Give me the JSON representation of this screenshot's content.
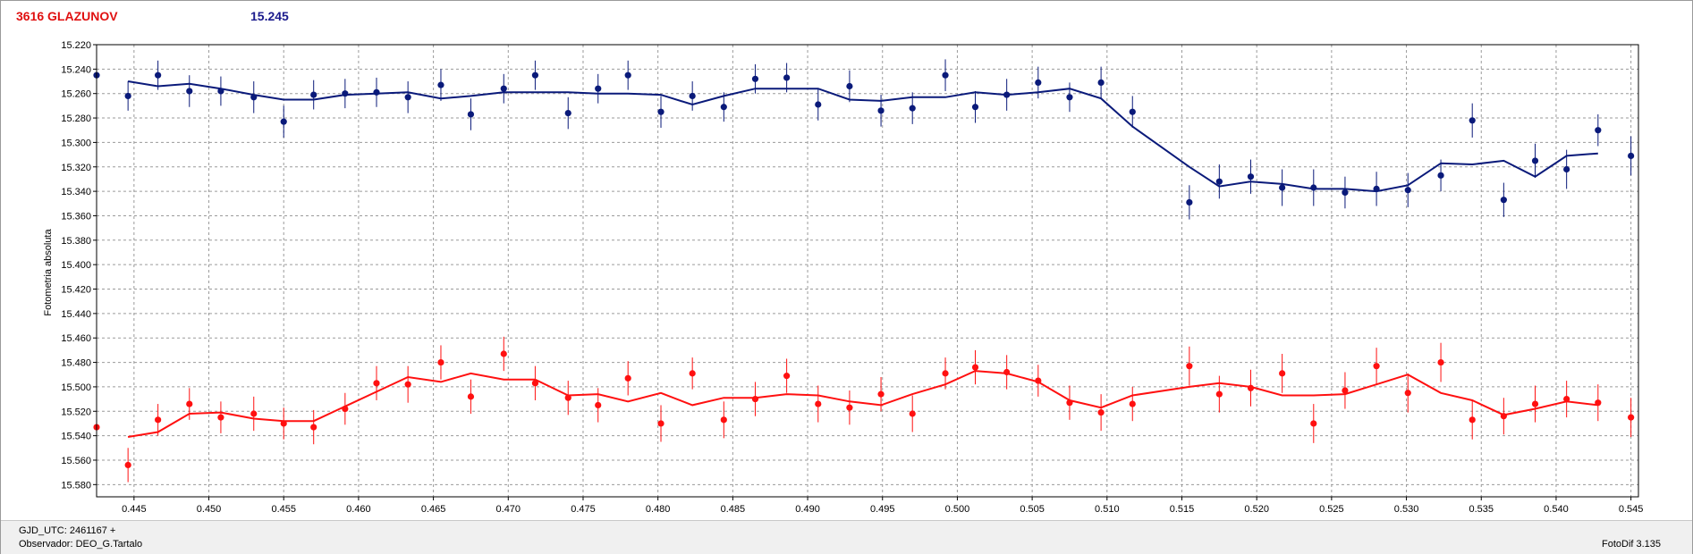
{
  "header": {
    "object": "3616 GLAZUNOV",
    "magnitude": "15.245"
  },
  "footer": {
    "gjd": "GJD_UTC: 2461167 +",
    "observer": "Observador: DEO_G.Tartalo",
    "software": "FotoDif 3.135"
  },
  "colors": {
    "series1": "#0a1a7a",
    "series2": "#ff1010"
  },
  "chart_data": {
    "type": "scatter",
    "title": "",
    "xlabel": "",
    "ylabel": "Fotometria absoluta",
    "xlim": [
      0.4425,
      0.5455
    ],
    "ylim": [
      15.22,
      15.59
    ],
    "y_inverted": true,
    "grid": true,
    "x_ticks": [
      "0.445",
      "0.450",
      "0.455",
      "0.460",
      "0.465",
      "0.470",
      "0.475",
      "0.480",
      "0.485",
      "0.490",
      "0.495",
      "0.500",
      "0.505",
      "0.510",
      "0.515",
      "0.520",
      "0.525",
      "0.530",
      "0.535",
      "0.540",
      "0.545"
    ],
    "y_ticks": [
      "15.220",
      "15.240",
      "15.260",
      "15.280",
      "15.300",
      "15.320",
      "15.340",
      "15.360",
      "15.380",
      "15.400",
      "15.420",
      "15.440",
      "15.460",
      "15.480",
      "15.500",
      "15.520",
      "15.540",
      "15.560",
      "15.580"
    ],
    "series": [
      {
        "color": "#0a1a7a",
        "points": [
          [
            0.4425,
            15.245
          ],
          [
            0.4446,
            15.262
          ],
          [
            0.4466,
            15.245
          ],
          [
            0.4487,
            15.258
          ],
          [
            0.4508,
            15.258
          ],
          [
            0.453,
            15.263
          ],
          [
            0.455,
            15.283
          ],
          [
            0.457,
            15.261
          ],
          [
            0.4591,
            15.26
          ],
          [
            0.4612,
            15.259
          ],
          [
            0.4633,
            15.263
          ],
          [
            0.4655,
            15.253
          ],
          [
            0.4675,
            15.277
          ],
          [
            0.4697,
            15.256
          ],
          [
            0.4718,
            15.245
          ],
          [
            0.474,
            15.276
          ],
          [
            0.476,
            15.256
          ],
          [
            0.478,
            15.245
          ],
          [
            0.4802,
            15.275
          ],
          [
            0.4823,
            15.262
          ],
          [
            0.4844,
            15.271
          ],
          [
            0.4865,
            15.248
          ],
          [
            0.4886,
            15.247
          ],
          [
            0.4907,
            15.269
          ],
          [
            0.4928,
            15.254
          ],
          [
            0.4949,
            15.274
          ],
          [
            0.497,
            15.272
          ],
          [
            0.4992,
            15.245
          ],
          [
            0.5012,
            15.271
          ],
          [
            0.5033,
            15.261
          ],
          [
            0.5054,
            15.251
          ],
          [
            0.5075,
            15.263
          ],
          [
            0.5096,
            15.251
          ],
          [
            0.5117,
            15.275
          ],
          [
            0.5155,
            15.349
          ],
          [
            0.5175,
            15.332
          ],
          [
            0.5196,
            15.328
          ],
          [
            0.5217,
            15.337
          ],
          [
            0.5238,
            15.337
          ],
          [
            0.5259,
            15.341
          ],
          [
            0.528,
            15.338
          ],
          [
            0.5301,
            15.339
          ],
          [
            0.5323,
            15.327
          ],
          [
            0.5344,
            15.282
          ],
          [
            0.5365,
            15.347
          ],
          [
            0.5386,
            15.315
          ],
          [
            0.5407,
            15.322
          ],
          [
            0.5428,
            15.29
          ],
          [
            0.545,
            15.311
          ]
        ],
        "errors": [
          0.012,
          0.012,
          0.012,
          0.013,
          0.012,
          0.013,
          0.013,
          0.012,
          0.012,
          0.012,
          0.013,
          0.013,
          0.013,
          0.012,
          0.012,
          0.013,
          0.012,
          0.012,
          0.013,
          0.012,
          0.012,
          0.012,
          0.012,
          0.013,
          0.013,
          0.013,
          0.013,
          0.013,
          0.013,
          0.013,
          0.013,
          0.012,
          0.013,
          0.013,
          0.014,
          0.014,
          0.014,
          0.015,
          0.015,
          0.013,
          0.014,
          0.014,
          0.013,
          0.014,
          0.014,
          0.014,
          0.016,
          0.013,
          0.016
        ],
        "trend": [
          [
            0.4446,
            15.25
          ],
          [
            0.4466,
            15.254
          ],
          [
            0.4487,
            15.252
          ],
          [
            0.4508,
            15.256
          ],
          [
            0.453,
            15.261
          ],
          [
            0.455,
            15.265
          ],
          [
            0.457,
            15.265
          ],
          [
            0.4591,
            15.261
          ],
          [
            0.4612,
            15.26
          ],
          [
            0.4633,
            15.259
          ],
          [
            0.4655,
            15.264
          ],
          [
            0.4675,
            15.262
          ],
          [
            0.4697,
            15.259
          ],
          [
            0.4718,
            15.259
          ],
          [
            0.474,
            15.259
          ],
          [
            0.476,
            15.26
          ],
          [
            0.478,
            15.26
          ],
          [
            0.4802,
            15.261
          ],
          [
            0.4823,
            15.269
          ],
          [
            0.4844,
            15.262
          ],
          [
            0.4865,
            15.256
          ],
          [
            0.4886,
            15.256
          ],
          [
            0.4907,
            15.256
          ],
          [
            0.4928,
            15.265
          ],
          [
            0.4949,
            15.266
          ],
          [
            0.497,
            15.263
          ],
          [
            0.4992,
            15.263
          ],
          [
            0.5012,
            15.259
          ],
          [
            0.5033,
            15.261
          ],
          [
            0.5054,
            15.259
          ],
          [
            0.5075,
            15.256
          ],
          [
            0.5096,
            15.264
          ],
          [
            0.5117,
            15.287
          ],
          [
            0.5155,
            15.32
          ],
          [
            0.5175,
            15.336
          ],
          [
            0.5196,
            15.332
          ],
          [
            0.5217,
            15.334
          ],
          [
            0.5238,
            15.338
          ],
          [
            0.5259,
            15.338
          ],
          [
            0.528,
            15.34
          ],
          [
            0.5301,
            15.335
          ],
          [
            0.5323,
            15.317
          ],
          [
            0.5344,
            15.318
          ],
          [
            0.5365,
            15.315
          ],
          [
            0.5386,
            15.328
          ],
          [
            0.5407,
            15.311
          ],
          [
            0.5428,
            15.309
          ]
        ]
      },
      {
        "color": "#ff1010",
        "points": [
          [
            0.4425,
            15.533
          ],
          [
            0.4446,
            15.564
          ],
          [
            0.4466,
            15.527
          ],
          [
            0.4487,
            15.514
          ],
          [
            0.4508,
            15.525
          ],
          [
            0.453,
            15.522
          ],
          [
            0.455,
            15.53
          ],
          [
            0.457,
            15.533
          ],
          [
            0.4591,
            15.518
          ],
          [
            0.4612,
            15.497
          ],
          [
            0.4633,
            15.498
          ],
          [
            0.4655,
            15.48
          ],
          [
            0.4675,
            15.508
          ],
          [
            0.4697,
            15.473
          ],
          [
            0.4718,
            15.497
          ],
          [
            0.474,
            15.509
          ],
          [
            0.476,
            15.515
          ],
          [
            0.478,
            15.493
          ],
          [
            0.4802,
            15.53
          ],
          [
            0.4823,
            15.489
          ],
          [
            0.4844,
            15.527
          ],
          [
            0.4865,
            15.51
          ],
          [
            0.4886,
            15.491
          ],
          [
            0.4907,
            15.514
          ],
          [
            0.4928,
            15.517
          ],
          [
            0.4949,
            15.506
          ],
          [
            0.497,
            15.522
          ],
          [
            0.4992,
            15.489
          ],
          [
            0.5012,
            15.484
          ],
          [
            0.5033,
            15.488
          ],
          [
            0.5054,
            15.495
          ],
          [
            0.5075,
            15.513
          ],
          [
            0.5096,
            15.521
          ],
          [
            0.5117,
            15.514
          ],
          [
            0.5155,
            15.483
          ],
          [
            0.5175,
            15.506
          ],
          [
            0.5196,
            15.501
          ],
          [
            0.5217,
            15.489
          ],
          [
            0.5238,
            15.53
          ],
          [
            0.5259,
            15.503
          ],
          [
            0.528,
            15.483
          ],
          [
            0.5301,
            15.505
          ],
          [
            0.5323,
            15.48
          ],
          [
            0.5344,
            15.527
          ],
          [
            0.5365,
            15.524
          ],
          [
            0.5386,
            15.514
          ],
          [
            0.5407,
            15.51
          ],
          [
            0.5428,
            15.513
          ],
          [
            0.545,
            15.525
          ]
        ],
        "errors": [
          0.014,
          0.014,
          0.013,
          0.013,
          0.013,
          0.014,
          0.013,
          0.014,
          0.013,
          0.014,
          0.015,
          0.014,
          0.014,
          0.014,
          0.014,
          0.014,
          0.014,
          0.014,
          0.015,
          0.013,
          0.015,
          0.014,
          0.014,
          0.015,
          0.014,
          0.014,
          0.015,
          0.013,
          0.014,
          0.014,
          0.013,
          0.014,
          0.015,
          0.014,
          0.016,
          0.015,
          0.015,
          0.016,
          0.016,
          0.015,
          0.015,
          0.016,
          0.016,
          0.016,
          0.015,
          0.015,
          0.015,
          0.015,
          0.016
        ],
        "trend": [
          [
            0.4446,
            15.541
          ],
          [
            0.4466,
            15.537
          ],
          [
            0.4487,
            15.522
          ],
          [
            0.4508,
            15.521
          ],
          [
            0.453,
            15.526
          ],
          [
            0.455,
            15.528
          ],
          [
            0.457,
            15.528
          ],
          [
            0.4591,
            15.516
          ],
          [
            0.4612,
            15.504
          ],
          [
            0.4633,
            15.492
          ],
          [
            0.4655,
            15.496
          ],
          [
            0.4675,
            15.489
          ],
          [
            0.4697,
            15.494
          ],
          [
            0.4718,
            15.494
          ],
          [
            0.474,
            15.507
          ],
          [
            0.476,
            15.506
          ],
          [
            0.478,
            15.512
          ],
          [
            0.4802,
            15.505
          ],
          [
            0.4823,
            15.515
          ],
          [
            0.4844,
            15.509
          ],
          [
            0.4865,
            15.509
          ],
          [
            0.4886,
            15.506
          ],
          [
            0.4907,
            15.507
          ],
          [
            0.4928,
            15.512
          ],
          [
            0.4949,
            15.515
          ],
          [
            0.497,
            15.506
          ],
          [
            0.4992,
            15.498
          ],
          [
            0.5012,
            15.487
          ],
          [
            0.5033,
            15.489
          ],
          [
            0.5054,
            15.496
          ],
          [
            0.5075,
            15.511
          ],
          [
            0.5096,
            15.517
          ],
          [
            0.5117,
            15.507
          ],
          [
            0.5155,
            15.5
          ],
          [
            0.5175,
            15.497
          ],
          [
            0.5196,
            15.5
          ],
          [
            0.5217,
            15.507
          ],
          [
            0.5238,
            15.507
          ],
          [
            0.5259,
            15.506
          ],
          [
            0.528,
            15.498
          ],
          [
            0.5301,
            15.49
          ],
          [
            0.5323,
            15.505
          ],
          [
            0.5344,
            15.511
          ],
          [
            0.5365,
            15.523
          ],
          [
            0.5386,
            15.518
          ],
          [
            0.5407,
            15.512
          ],
          [
            0.5428,
            15.515
          ]
        ]
      }
    ]
  }
}
